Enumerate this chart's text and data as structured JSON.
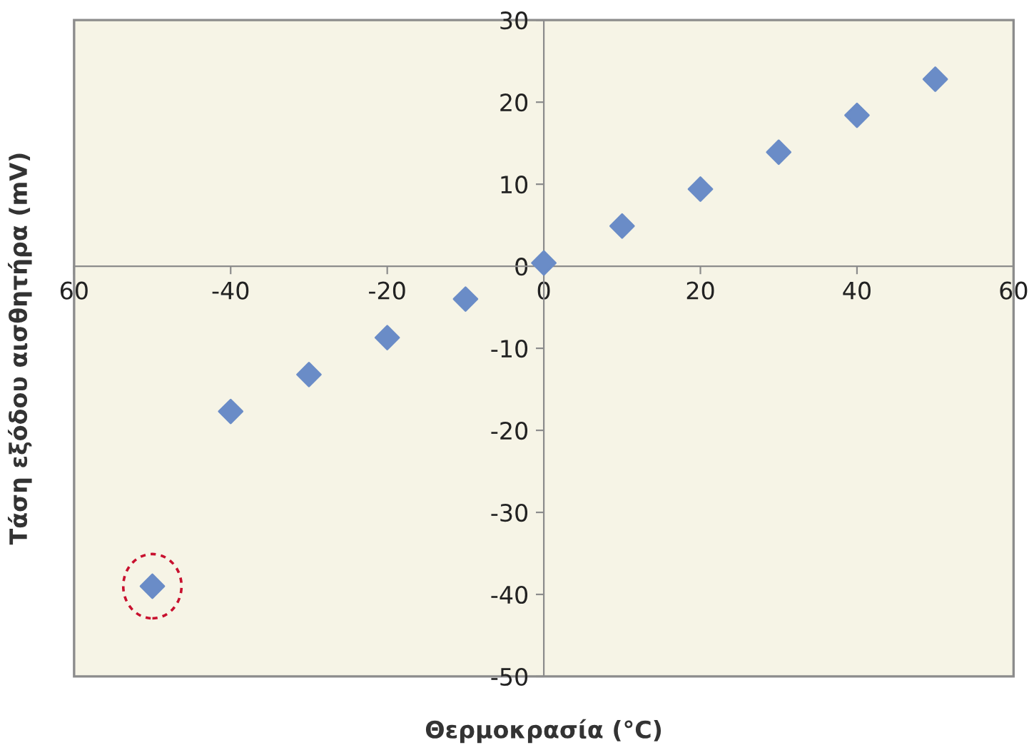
{
  "chart_data": {
    "type": "scatter",
    "xlabel": "Θερμοκρασία (°C)",
    "ylabel": "Τάση εξόδου αισθητήρα (mV)",
    "x": [
      -50,
      -40,
      -30,
      -20,
      -10,
      0,
      10,
      20,
      30,
      40,
      50
    ],
    "series": [
      {
        "color": "#6a8cc7",
        "values": [
          -39,
          -17.7,
          -13.2,
          -8.7,
          -4,
          0.4,
          4.9,
          9.4,
          13.9,
          18.4,
          22.8
        ]
      }
    ],
    "xlim": [
      -60,
      60
    ],
    "ylim": [
      -50,
      30
    ],
    "xticks": [
      {
        "value": -60,
        "label": "60"
      },
      -40,
      -20,
      0,
      20,
      40,
      60
    ],
    "yticks": [
      -50,
      -40,
      -30,
      -20,
      -10,
      0,
      10,
      20,
      30
    ],
    "marker": "diamond",
    "grid": false,
    "legend": false
  }
}
